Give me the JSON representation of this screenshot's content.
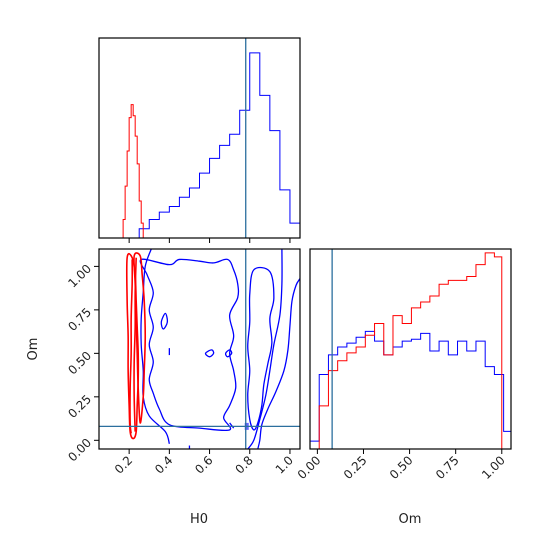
{
  "chart_data": {
    "type": "corner",
    "parameters": [
      "H0",
      "Om"
    ],
    "truth": {
      "H0": 0.78,
      "Om": 0.08
    },
    "colors": {
      "blue": "#0000ff",
      "red": "#ff0000",
      "truth": "#2b6f9e"
    },
    "panels": [
      {
        "id": "hist-H0",
        "type": "histogram",
        "xlim": [
          0.05,
          1.05
        ],
        "ylim": [
          0,
          1.08
        ],
        "xticks": [
          0.2,
          0.4,
          0.6,
          0.8,
          1.0
        ],
        "series": [
          {
            "color": "#0000ff",
            "edges": [
              0.05,
              0.1,
              0.15,
              0.2,
              0.25,
              0.3,
              0.35,
              0.4,
              0.45,
              0.5,
              0.55,
              0.6,
              0.65,
              0.7,
              0.75,
              0.8,
              0.85,
              0.9,
              0.95,
              1.0,
              1.05
            ],
            "heights": [
              0.0,
              0.0,
              0.0,
              0.0,
              0.05,
              0.1,
              0.14,
              0.17,
              0.22,
              0.27,
              0.35,
              0.43,
              0.5,
              0.56,
              0.69,
              1.0,
              0.77,
              0.58,
              0.26,
              0.08
            ]
          },
          {
            "color": "#ff0000",
            "edges": [
              0.16,
              0.17,
              0.18,
              0.19,
              0.2,
              0.21,
              0.22,
              0.23,
              0.24,
              0.25,
              0.26,
              0.27
            ],
            "heights": [
              0.0,
              0.1,
              0.28,
              0.47,
              0.65,
              0.72,
              0.66,
              0.55,
              0.4,
              0.2,
              0.08
            ]
          }
        ]
      },
      {
        "id": "contour-H0-Om",
        "type": "contour",
        "xlim": [
          0.05,
          1.05
        ],
        "ylim": [
          -0.05,
          1.1
        ],
        "xticks": [
          0.2,
          0.4,
          0.6,
          0.8,
          1.0
        ],
        "xticklabels": [
          "0.2",
          "0.4",
          "0.6",
          "0.8",
          "1.0"
        ],
        "yticks": [
          0.0,
          0.25,
          0.5,
          0.75,
          1.0
        ],
        "yticklabels": [
          "0.00",
          "0.25",
          "0.50",
          "0.75",
          "1.00"
        ],
        "xlabel": "H0",
        "ylabel": "Om",
        "contours": [
          {
            "color": "#0000ff",
            "closed": true,
            "points": [
              [
                0.26,
                1.04
              ],
              [
                0.4,
                1.01
              ],
              [
                0.45,
                1.04
              ],
              [
                0.55,
                1.03
              ],
              [
                0.62,
                1.02
              ],
              [
                0.69,
                1.04
              ],
              [
                0.72,
                0.98
              ],
              [
                0.74,
                0.9
              ],
              [
                0.74,
                0.82
              ],
              [
                0.7,
                0.72
              ],
              [
                0.72,
                0.6
              ],
              [
                0.7,
                0.5
              ],
              [
                0.72,
                0.4
              ],
              [
                0.73,
                0.3
              ],
              [
                0.7,
                0.2
              ],
              [
                0.67,
                0.13
              ],
              [
                0.7,
                0.06
              ],
              [
                0.55,
                0.07
              ],
              [
                0.4,
                0.09
              ],
              [
                0.35,
                0.18
              ],
              [
                0.32,
                0.27
              ],
              [
                0.3,
                0.35
              ],
              [
                0.32,
                0.45
              ],
              [
                0.3,
                0.55
              ],
              [
                0.32,
                0.65
              ],
              [
                0.3,
                0.75
              ],
              [
                0.32,
                0.85
              ],
              [
                0.29,
                0.95
              ]
            ]
          },
          {
            "color": "#0000ff",
            "closed": true,
            "points": [
              [
                0.82,
                0.98
              ],
              [
                0.9,
                0.97
              ],
              [
                0.92,
                0.82
              ],
              [
                0.9,
                0.7
              ],
              [
                0.91,
                0.56
              ],
              [
                0.89,
                0.44
              ],
              [
                0.87,
                0.32
              ],
              [
                0.86,
                0.2
              ],
              [
                0.84,
                0.1
              ],
              [
                0.82,
                0.06
              ],
              [
                0.8,
                0.12
              ],
              [
                0.79,
                0.26
              ],
              [
                0.8,
                0.4
              ],
              [
                0.79,
                0.54
              ],
              [
                0.8,
                0.68
              ],
              [
                0.8,
                0.84
              ]
            ]
          },
          {
            "color": "#0000ff",
            "closed": false,
            "points": [
              [
                0.96,
                1.1
              ],
              [
                0.96,
                0.9
              ],
              [
                0.95,
                0.72
              ],
              [
                0.92,
                0.55
              ],
              [
                0.9,
                0.4
              ],
              [
                0.88,
                0.26
              ],
              [
                0.85,
                0.12
              ],
              [
                0.82,
                0.0
              ],
              [
                0.79,
                -0.05
              ]
            ]
          },
          {
            "color": "#0000ff",
            "closed": false,
            "points": [
              [
                1.05,
                0.93
              ],
              [
                1.03,
                0.89
              ],
              [
                1.01,
                0.8
              ],
              [
                1.0,
                0.66
              ],
              [
                0.99,
                0.52
              ],
              [
                0.97,
                0.4
              ],
              [
                0.93,
                0.28
              ],
              [
                0.89,
                0.18
              ],
              [
                0.86,
                0.09
              ],
              [
                0.85,
                0.0
              ],
              [
                0.84,
                -0.05
              ]
            ]
          },
          {
            "color": "#0000ff",
            "closed": false,
            "points": [
              [
                0.31,
                1.1
              ],
              [
                0.28,
                1.0
              ],
              [
                0.27,
                0.85
              ],
              [
                0.26,
                0.7
              ],
              [
                0.26,
                0.55
              ],
              [
                0.27,
                0.4
              ],
              [
                0.27,
                0.25
              ],
              [
                0.3,
                0.14
              ],
              [
                0.38,
                0.05
              ],
              [
                0.4,
                -0.02
              ]
            ]
          },
          {
            "color": "#0000ff",
            "closed": true,
            "points": [
              [
                0.36,
                0.68
              ],
              [
                0.38,
                0.73
              ],
              [
                0.39,
                0.68
              ],
              [
                0.37,
                0.64
              ]
            ]
          },
          {
            "color": "#0000ff",
            "closed": false,
            "points": [
              [
                0.4,
                0.53
              ],
              [
                0.4,
                0.49
              ]
            ]
          },
          {
            "color": "#0000ff",
            "closed": true,
            "points": [
              [
                0.58,
                0.5
              ],
              [
                0.61,
                0.52
              ],
              [
                0.62,
                0.5
              ],
              [
                0.6,
                0.48
              ]
            ]
          },
          {
            "color": "#0000ff",
            "closed": true,
            "points": [
              [
                0.68,
                0.5
              ],
              [
                0.7,
                0.52
              ],
              [
                0.71,
                0.5
              ],
              [
                0.69,
                0.48
              ]
            ]
          },
          {
            "color": "#0000ff",
            "closed": false,
            "points": [
              [
                0.7,
                0.1
              ],
              [
                0.72,
                0.07
              ]
            ]
          },
          {
            "color": "#0000ff",
            "closed": false,
            "points": [
              [
                0.5,
                -0.03
              ],
              [
                0.5,
                -0.05
              ]
            ]
          },
          {
            "color": "#ff0000",
            "closed": true,
            "points": [
              [
                0.19,
                1.05
              ],
              [
                0.215,
                1.05
              ],
              [
                0.23,
                0.95
              ],
              [
                0.235,
                0.8
              ],
              [
                0.24,
                0.65
              ],
              [
                0.245,
                0.5
              ],
              [
                0.245,
                0.35
              ],
              [
                0.24,
                0.2
              ],
              [
                0.235,
                0.05
              ],
              [
                0.22,
                0.01
              ],
              [
                0.205,
                0.05
              ],
              [
                0.2,
                0.2
              ],
              [
                0.195,
                0.4
              ],
              [
                0.195,
                0.6
              ],
              [
                0.19,
                0.8
              ]
            ]
          },
          {
            "color": "#ff0000",
            "closed": true,
            "points": [
              [
                0.225,
                1.06
              ],
              [
                0.255,
                1.06
              ],
              [
                0.265,
                0.95
              ],
              [
                0.275,
                0.8
              ],
              [
                0.28,
                0.6
              ],
              [
                0.275,
                0.4
              ],
              [
                0.27,
                0.25
              ],
              [
                0.255,
                0.1
              ],
              [
                0.245,
                0.3
              ],
              [
                0.24,
                0.5
              ],
              [
                0.235,
                0.7
              ],
              [
                0.23,
                0.9
              ]
            ]
          },
          {
            "color": "#ff0000",
            "closed": false,
            "points": [
              [
                0.21,
                0.04
              ],
              [
                0.205,
                0.1
              ],
              [
                0.205,
                0.3
              ],
              [
                0.21,
                0.5
              ],
              [
                0.21,
                0.7
              ],
              [
                0.215,
                0.9
              ],
              [
                0.215,
                1.04
              ]
            ]
          },
          {
            "color": "#ff0000",
            "closed": false,
            "points": [
              [
                0.23,
                0.05
              ],
              [
                0.225,
                0.25
              ],
              [
                0.225,
                0.45
              ],
              [
                0.23,
                0.65
              ],
              [
                0.23,
                0.85
              ],
              [
                0.235,
                1.05
              ]
            ]
          }
        ],
        "fills": [
          {
            "color": "#0000ff",
            "closed": true,
            "points": [
              [
                0.775,
                0.06
              ],
              [
                0.795,
                0.06
              ],
              [
                0.795,
                0.1
              ],
              [
                0.775,
                0.1
              ]
            ]
          }
        ]
      },
      {
        "id": "hist-Om",
        "type": "histogram",
        "xlim": [
          -0.04,
          1.05
        ],
        "ylim": [
          0,
          1.02
        ],
        "xticks": [
          0.0,
          0.25,
          0.5,
          0.75,
          1.0
        ],
        "xticklabels": [
          "0.00",
          "0.25",
          "0.50",
          "0.75",
          "1.00"
        ],
        "xlabel": "Om",
        "series": [
          {
            "color": "#0000ff",
            "edges": [
              -0.04,
              0.01,
              0.06,
              0.11,
              0.16,
              0.21,
              0.26,
              0.31,
              0.36,
              0.41,
              0.46,
              0.51,
              0.56,
              0.61,
              0.66,
              0.71,
              0.76,
              0.81,
              0.86,
              0.91,
              0.96,
              1.01,
              1.05
            ],
            "heights": [
              0.04,
              0.38,
              0.48,
              0.52,
              0.54,
              0.57,
              0.6,
              0.55,
              0.48,
              0.52,
              0.55,
              0.56,
              0.59,
              0.5,
              0.55,
              0.48,
              0.55,
              0.5,
              0.55,
              0.42,
              0.38,
              0.09
            ]
          },
          {
            "color": "#ff0000",
            "edges": [
              0.01,
              0.06,
              0.11,
              0.16,
              0.21,
              0.26,
              0.31,
              0.36,
              0.41,
              0.46,
              0.51,
              0.56,
              0.61,
              0.66,
              0.71,
              0.76,
              0.81,
              0.86,
              0.91,
              0.96,
              1.0
            ],
            "heights": [
              0.22,
              0.4,
              0.45,
              0.49,
              0.52,
              0.58,
              0.64,
              0.48,
              0.68,
              0.64,
              0.72,
              0.75,
              0.78,
              0.84,
              0.86,
              0.86,
              0.88,
              0.94,
              1.0,
              0.98
            ]
          }
        ]
      }
    ]
  }
}
